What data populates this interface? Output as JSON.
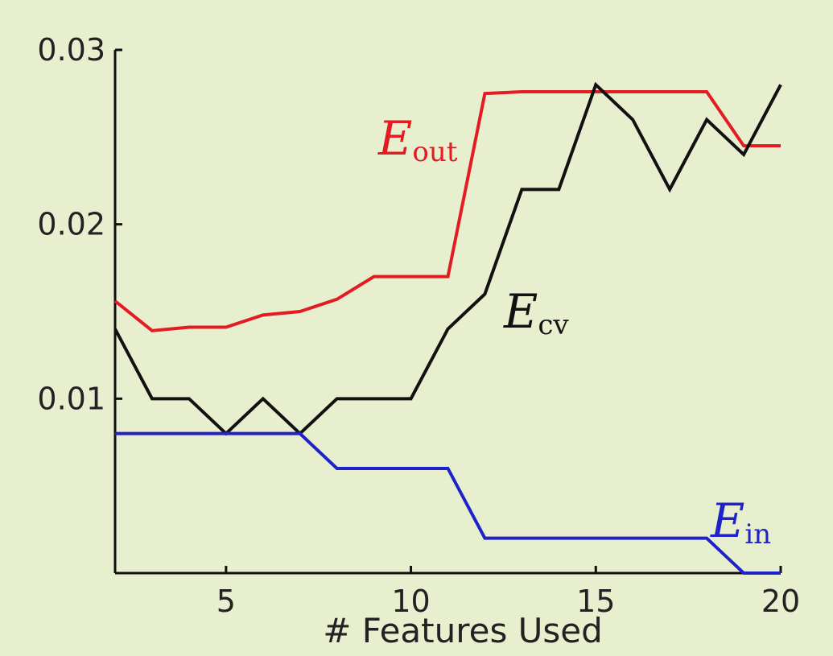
{
  "chart_data": {
    "type": "line",
    "title": "",
    "xlabel": "# Features Used",
    "ylabel": "",
    "xlim": [
      2,
      20
    ],
    "ylim": [
      0,
      0.03
    ],
    "xticks": [
      5,
      10,
      15,
      20
    ],
    "xtick_labels": [
      "5",
      "10",
      "15",
      "20"
    ],
    "yticks": [
      0.01,
      0.02,
      0.03
    ],
    "ytick_labels": [
      "0.01",
      "0.02",
      "0.03"
    ],
    "grid": false,
    "legend": "inline labels near lines",
    "x": [
      2,
      3,
      4,
      5,
      6,
      7,
      8,
      9,
      10,
      11,
      12,
      13,
      14,
      15,
      16,
      17,
      18,
      19,
      20
    ],
    "series": [
      {
        "key": "out",
        "name": "E",
        "subscript": "out",
        "color": "#e31b23",
        "values": [
          0.0156,
          0.0139,
          0.0141,
          0.0141,
          0.0148,
          0.015,
          0.0157,
          0.017,
          0.017,
          0.017,
          0.0275,
          0.0276,
          0.0276,
          0.0276,
          0.0276,
          0.0276,
          0.0276,
          0.0245,
          0.0245
        ]
      },
      {
        "key": "cv",
        "name": "E",
        "subscript": "cv",
        "color": "#111111",
        "values": [
          0.014,
          0.01,
          0.01,
          0.008,
          0.01,
          0.008,
          0.01,
          0.01,
          0.01,
          0.014,
          0.016,
          0.022,
          0.022,
          0.028,
          0.026,
          0.022,
          0.026,
          0.024,
          0.028
        ]
      },
      {
        "key": "in",
        "name": "E",
        "subscript": "in",
        "color": "#1f22c8",
        "values": [
          0.008,
          0.008,
          0.008,
          0.008,
          0.008,
          0.008,
          0.006,
          0.006,
          0.006,
          0.006,
          0.002,
          0.002,
          0.002,
          0.002,
          0.002,
          0.002,
          0.002,
          0.0,
          0.0
        ]
      }
    ]
  }
}
